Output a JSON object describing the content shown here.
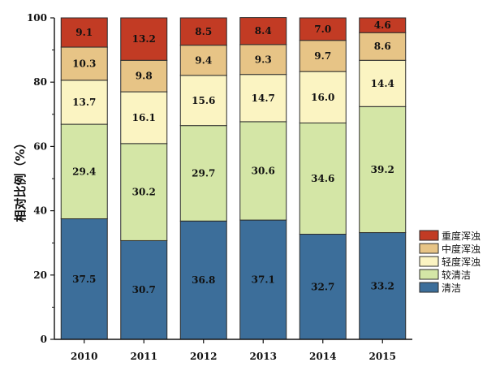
{
  "chart_data": {
    "type": "bar",
    "stacked": true,
    "categories": [
      "2010",
      "2011",
      "2012",
      "2013",
      "2014",
      "2015"
    ],
    "ylabel": "相对比例（%）",
    "ylim": [
      0,
      100
    ],
    "yticks": [
      0,
      20,
      40,
      60,
      80,
      100
    ],
    "legend_position": "bottom-right",
    "series": [
      {
        "name": "清洁",
        "color": "#3c6e9a",
        "values": [
          37.5,
          30.7,
          36.8,
          37.1,
          32.7,
          33.2
        ]
      },
      {
        "name": "较清洁",
        "color": "#d4e6a6",
        "values": [
          29.4,
          30.2,
          29.7,
          30.6,
          34.6,
          39.2
        ]
      },
      {
        "name": "轻度浑浊",
        "color": "#fbf4c2",
        "values": [
          13.7,
          16.1,
          15.6,
          14.7,
          16.0,
          14.4
        ]
      },
      {
        "name": "中度浑浊",
        "color": "#e7c486",
        "values": [
          10.3,
          9.8,
          9.4,
          9.3,
          9.7,
          8.6
        ]
      },
      {
        "name": "重度浑浊",
        "color": "#c23b24",
        "values": [
          9.1,
          13.2,
          8.5,
          8.4,
          7.0,
          4.6
        ]
      }
    ]
  }
}
